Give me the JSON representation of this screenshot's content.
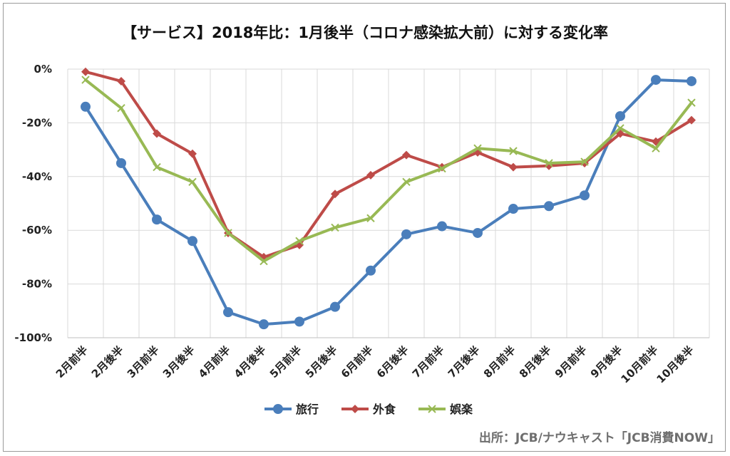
{
  "title": "【サービス】2018年比：1月後半（コロナ感染拡大前）に対する変化率",
  "source": "出所：JCB/ナウキャスト「JCB消費NOW」",
  "chart_data": {
    "type": "line",
    "categories": [
      "2月前半",
      "2月後半",
      "3月前半",
      "3月後半",
      "4月前半",
      "4月後半",
      "5月前半",
      "5月後半",
      "6月前半",
      "6月後半",
      "7月前半",
      "7月後半",
      "8月前半",
      "8月後半",
      "9月前半",
      "9月後半",
      "10月前半",
      "10月後半"
    ],
    "yticks": [
      "0%",
      "-20%",
      "-40%",
      "-60%",
      "-80%",
      "-100%"
    ],
    "ylim": [
      -100,
      0
    ],
    "grid": true,
    "legend_position": "bottom",
    "series": [
      {
        "name": "旅行",
        "color": "#4a7ebb",
        "marker": "circle",
        "values": [
          -14,
          -35,
          -56,
          -64,
          -90.5,
          -95,
          -94,
          -88.5,
          -75,
          -61.5,
          -58.5,
          -61,
          -52,
          -51,
          -47,
          -17.5,
          -4,
          -4.5
        ]
      },
      {
        "name": "外食",
        "color": "#be4b48",
        "marker": "diamond",
        "values": [
          -1,
          -4.5,
          -24,
          -31.5,
          -61,
          -70,
          -65.5,
          -46.5,
          -39.5,
          -32,
          -36.5,
          -31,
          -36.5,
          -36,
          -35,
          -24,
          -27,
          -19
        ]
      },
      {
        "name": "娯楽",
        "color": "#98b954",
        "marker": "x",
        "values": [
          -4,
          -14.5,
          -36.5,
          -42,
          -61,
          -71.5,
          -64,
          -59,
          -55.5,
          -42,
          -37,
          -29.5,
          -30.5,
          -35,
          -34.5,
          -22,
          -29.5,
          -12.5
        ]
      }
    ]
  }
}
